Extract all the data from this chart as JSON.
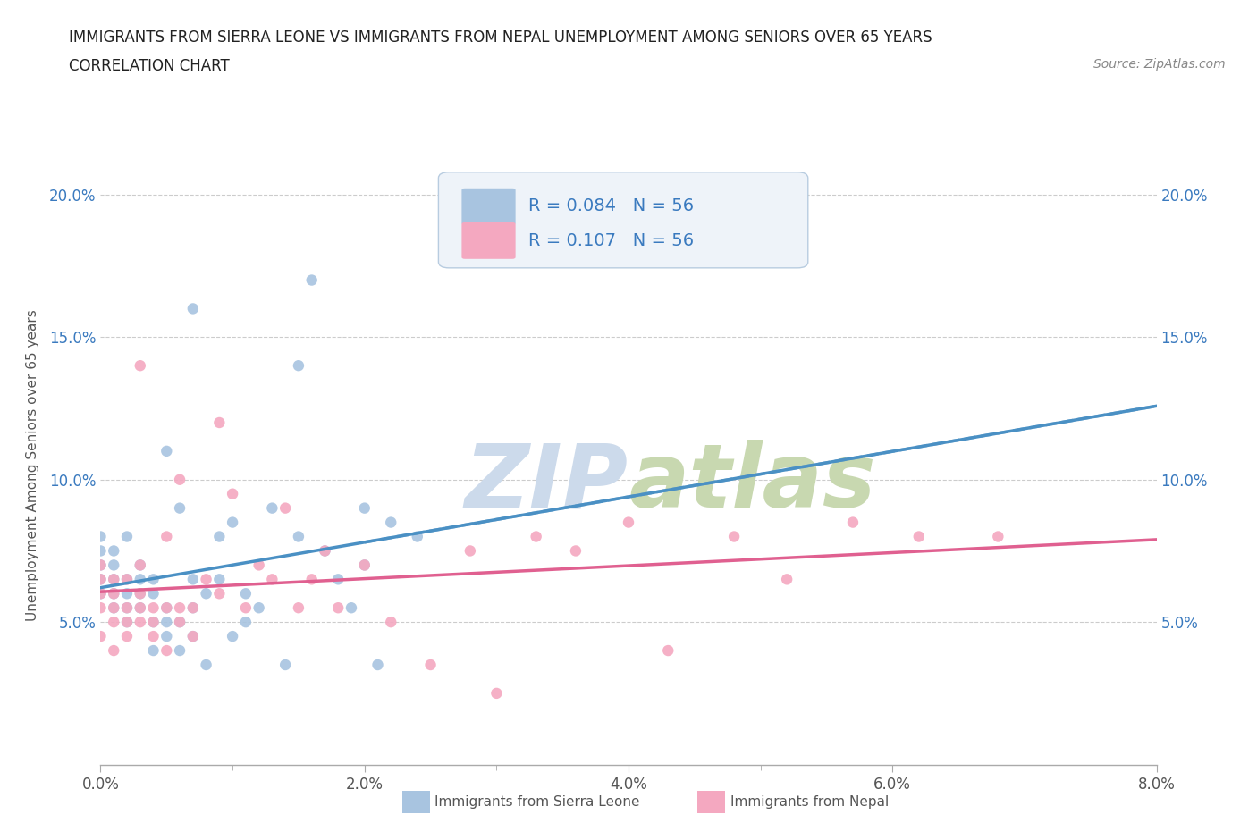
{
  "title_line1": "IMMIGRANTS FROM SIERRA LEONE VS IMMIGRANTS FROM NEPAL UNEMPLOYMENT AMONG SENIORS OVER 65 YEARS",
  "title_line2": "CORRELATION CHART",
  "source_text": "Source: ZipAtlas.com",
  "ylabel": "Unemployment Among Seniors over 65 years",
  "xlim": [
    0.0,
    0.08
  ],
  "ylim": [
    0.0,
    0.21
  ],
  "xtick_labels": [
    "0.0%",
    "",
    "2.0%",
    "",
    "4.0%",
    "",
    "6.0%",
    "",
    "8.0%"
  ],
  "xtick_values": [
    0.0,
    0.01,
    0.02,
    0.03,
    0.04,
    0.05,
    0.06,
    0.07,
    0.08
  ],
  "xtick_display": [
    "0.0%",
    "2.0%",
    "4.0%",
    "6.0%",
    "8.0%"
  ],
  "xtick_display_vals": [
    0.0,
    0.02,
    0.04,
    0.06,
    0.08
  ],
  "ytick_labels": [
    "5.0%",
    "10.0%",
    "15.0%",
    "20.0%"
  ],
  "ytick_values": [
    0.05,
    0.1,
    0.15,
    0.2
  ],
  "r_sierra": 0.084,
  "n_sierra": 56,
  "r_nepal": 0.107,
  "n_nepal": 56,
  "color_sierra": "#a8c4e0",
  "color_nepal": "#f4a8c0",
  "color_line_sierra": "#4a90c4",
  "color_line_nepal": "#e06090",
  "color_text_blue": "#3a7abf",
  "watermark_color": "#ccdaeb",
  "legend_box_color": "#eef3f9",
  "sierra_x": [
    0.0,
    0.0,
    0.0,
    0.0,
    0.0,
    0.001,
    0.001,
    0.001,
    0.001,
    0.001,
    0.002,
    0.002,
    0.002,
    0.002,
    0.002,
    0.003,
    0.003,
    0.003,
    0.003,
    0.004,
    0.004,
    0.004,
    0.004,
    0.005,
    0.005,
    0.005,
    0.005,
    0.006,
    0.006,
    0.006,
    0.007,
    0.007,
    0.007,
    0.007,
    0.008,
    0.008,
    0.009,
    0.009,
    0.01,
    0.01,
    0.011,
    0.011,
    0.012,
    0.013,
    0.014,
    0.015,
    0.015,
    0.016,
    0.017,
    0.018,
    0.019,
    0.02,
    0.02,
    0.021,
    0.022,
    0.024
  ],
  "sierra_y": [
    0.065,
    0.07,
    0.075,
    0.08,
    0.06,
    0.055,
    0.06,
    0.065,
    0.07,
    0.075,
    0.05,
    0.055,
    0.06,
    0.08,
    0.065,
    0.055,
    0.06,
    0.065,
    0.07,
    0.04,
    0.05,
    0.06,
    0.065,
    0.045,
    0.05,
    0.055,
    0.11,
    0.04,
    0.05,
    0.09,
    0.045,
    0.055,
    0.065,
    0.16,
    0.035,
    0.06,
    0.065,
    0.08,
    0.045,
    0.085,
    0.05,
    0.06,
    0.055,
    0.09,
    0.035,
    0.08,
    0.14,
    0.17,
    0.075,
    0.065,
    0.055,
    0.07,
    0.09,
    0.035,
    0.085,
    0.08
  ],
  "nepal_x": [
    0.0,
    0.0,
    0.0,
    0.0,
    0.0,
    0.001,
    0.001,
    0.001,
    0.001,
    0.001,
    0.002,
    0.002,
    0.002,
    0.002,
    0.003,
    0.003,
    0.003,
    0.003,
    0.003,
    0.004,
    0.004,
    0.004,
    0.005,
    0.005,
    0.005,
    0.006,
    0.006,
    0.006,
    0.007,
    0.007,
    0.008,
    0.009,
    0.009,
    0.01,
    0.011,
    0.012,
    0.013,
    0.014,
    0.015,
    0.016,
    0.017,
    0.018,
    0.02,
    0.022,
    0.025,
    0.028,
    0.03,
    0.033,
    0.036,
    0.04,
    0.043,
    0.048,
    0.052,
    0.057,
    0.062,
    0.068
  ],
  "nepal_y": [
    0.055,
    0.06,
    0.065,
    0.07,
    0.045,
    0.05,
    0.055,
    0.06,
    0.065,
    0.04,
    0.045,
    0.05,
    0.055,
    0.065,
    0.05,
    0.055,
    0.06,
    0.07,
    0.14,
    0.045,
    0.05,
    0.055,
    0.04,
    0.055,
    0.08,
    0.05,
    0.055,
    0.1,
    0.045,
    0.055,
    0.065,
    0.12,
    0.06,
    0.095,
    0.055,
    0.07,
    0.065,
    0.09,
    0.055,
    0.065,
    0.075,
    0.055,
    0.07,
    0.05,
    0.035,
    0.075,
    0.025,
    0.08,
    0.075,
    0.085,
    0.04,
    0.08,
    0.065,
    0.085,
    0.08,
    0.08
  ]
}
